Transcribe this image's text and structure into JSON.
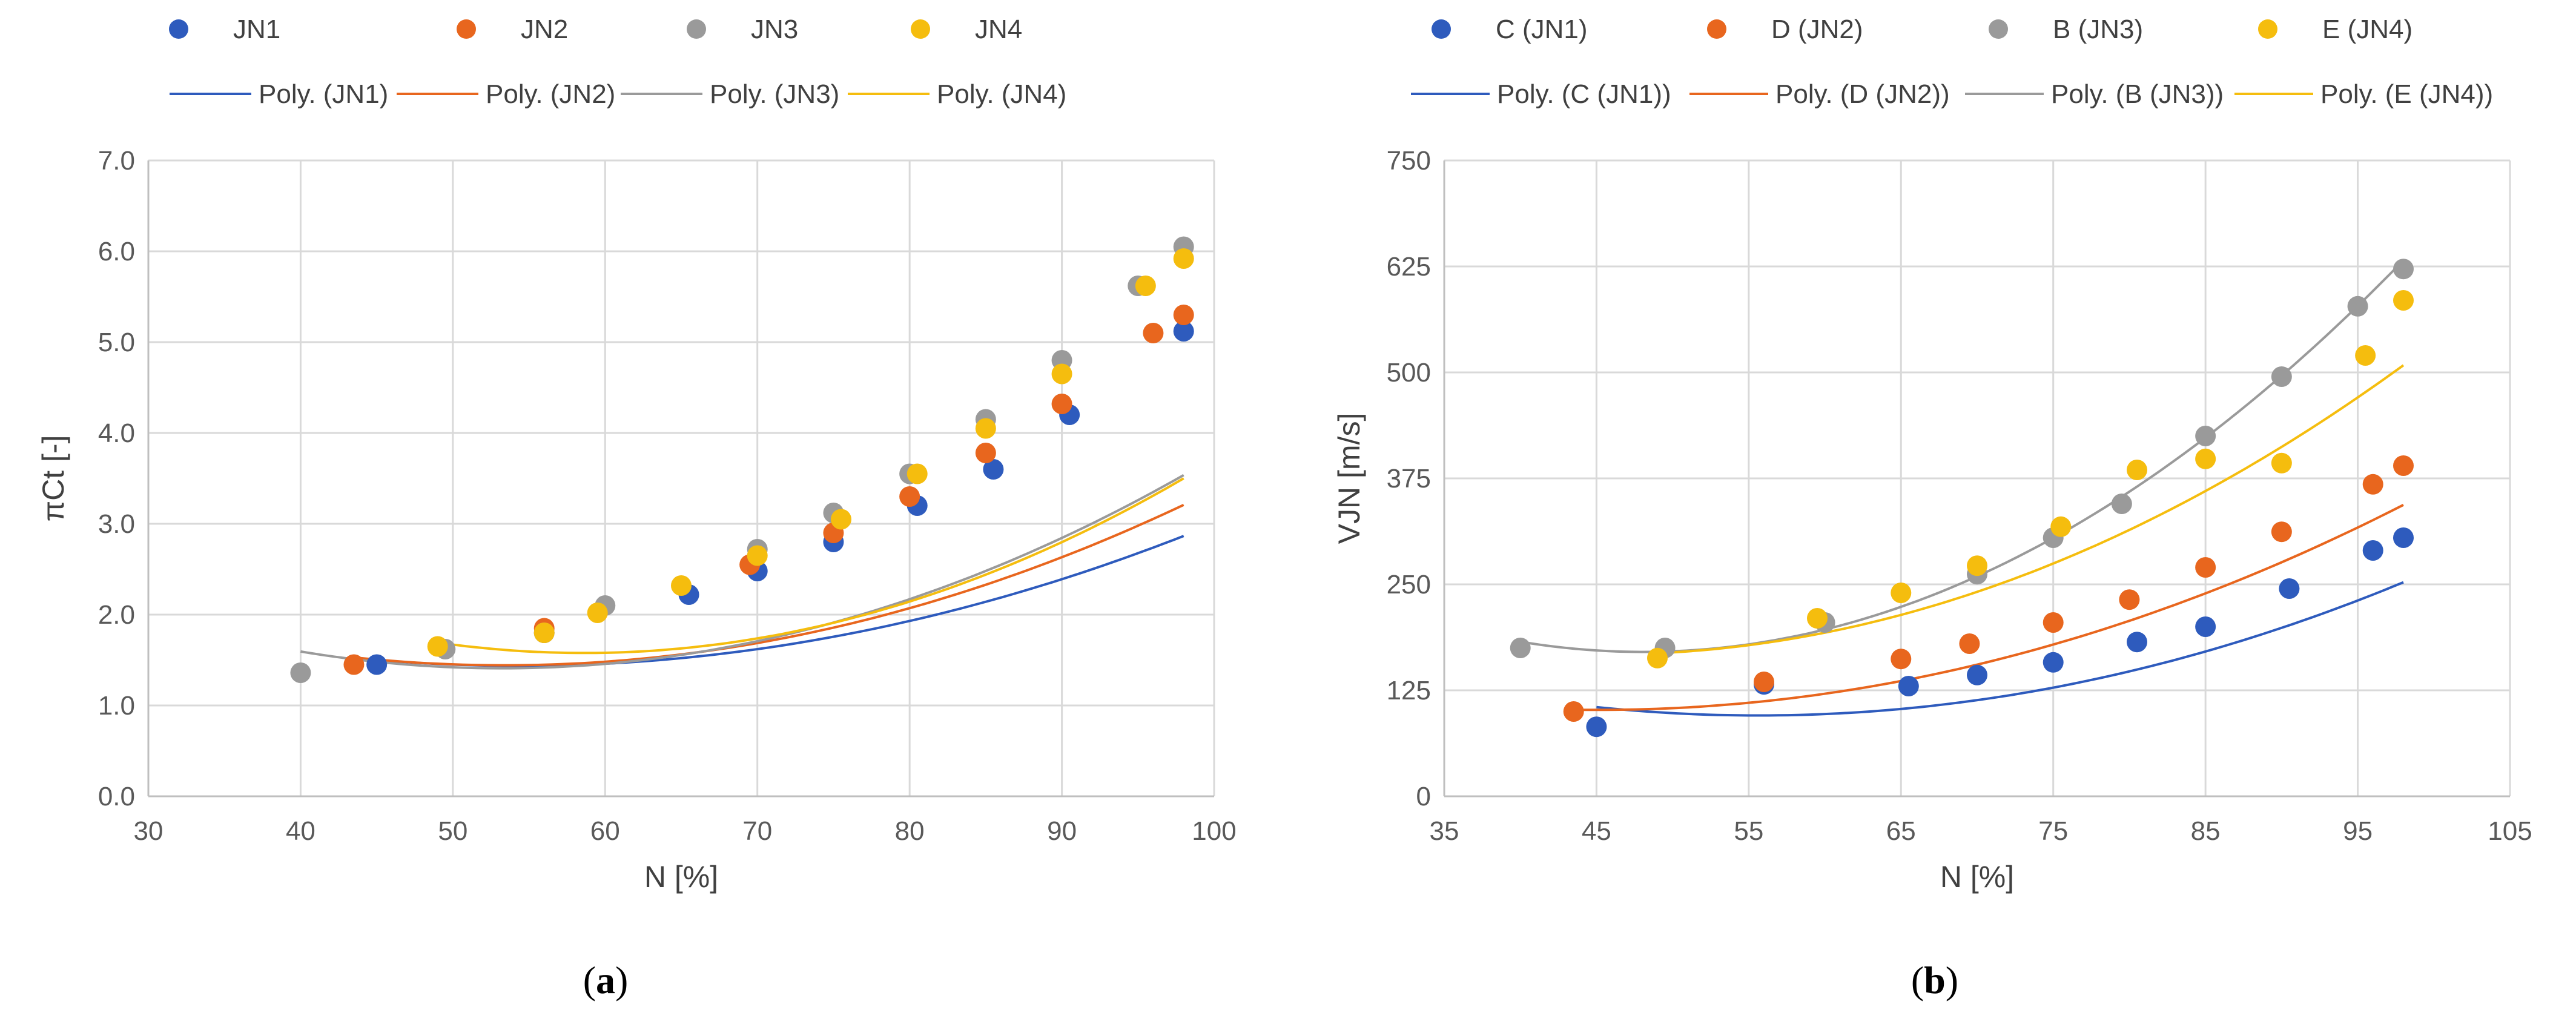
{
  "colors": {
    "JN1": "#2e5bbd",
    "JN2": "#e8661e",
    "JN3": "#9a9a9a",
    "JN4": "#f5bd0e"
  },
  "chart_data": [
    {
      "id": "a",
      "type": "scatter",
      "caption_pre": "(",
      "caption_letter": "a",
      "caption_post": ")",
      "xlabel": "N [%]",
      "ylabel": "πCt [-]",
      "xlim": [
        30,
        100
      ],
      "ylim": [
        0,
        7
      ],
      "xticks": [
        30,
        40,
        50,
        60,
        70,
        80,
        90,
        100
      ],
      "yticks": [
        "0.0",
        "1.0",
        "2.0",
        "3.0",
        "4.0",
        "5.0",
        "6.0",
        "7.0"
      ],
      "grid": true,
      "legend": "top",
      "series": [
        {
          "key": "JN1",
          "name": "JN1",
          "fit_name": "Poly. (JN1)",
          "x": [
            45,
            56,
            65.5,
            70,
            75,
            80.5,
            85.5,
            90.5,
            98
          ],
          "y": [
            1.45,
            1.8,
            2.22,
            2.48,
            2.8,
            3.2,
            3.6,
            4.2,
            5.12
          ],
          "fit": [
            0.00075,
            -0.0815,
            3.65
          ]
        },
        {
          "key": "JN2",
          "name": "JN2",
          "fit_name": "Poly. (JN2)",
          "x": [
            43.5,
            56,
            69.5,
            75,
            80,
            85,
            90,
            96,
            98
          ],
          "y": [
            1.45,
            1.85,
            2.55,
            2.9,
            3.3,
            3.78,
            4.32,
            5.1,
            5.3
          ],
          "fit": [
            0.000887,
            -0.0947,
            3.97
          ]
        },
        {
          "key": "JN3",
          "name": "JN3",
          "fit_name": "Poly. (JN3)",
          "x": [
            40,
            49.5,
            56,
            60,
            70,
            75,
            80,
            85,
            90,
            95,
            98
          ],
          "y": [
            1.36,
            1.62,
            1.8,
            2.1,
            2.72,
            3.12,
            3.55,
            4.15,
            4.8,
            5.62,
            6.05
          ],
          "fit": [
            0.00106,
            -0.1128,
            4.41
          ]
        },
        {
          "key": "JN4",
          "name": "JN4",
          "fit_name": "Poly. (JN4)",
          "x": [
            49,
            56,
            59.5,
            65,
            70,
            75.5,
            80.5,
            85,
            90,
            95.5,
            98
          ],
          "y": [
            1.65,
            1.8,
            2.02,
            2.32,
            2.65,
            3.05,
            3.55,
            4.05,
            4.65,
            5.62,
            5.92
          ],
          "fit": [
            0.00124,
            -0.1454,
            5.84
          ]
        }
      ]
    },
    {
      "id": "b",
      "type": "scatter",
      "caption_pre": "(",
      "caption_letter": "b",
      "caption_post": ")",
      "xlabel": "N [%]",
      "ylabel": "VJN [m/s]",
      "xlim": [
        35,
        105
      ],
      "ylim": [
        0,
        750
      ],
      "xticks": [
        35,
        45,
        55,
        65,
        75,
        85,
        95,
        105
      ],
      "yticks": [
        "0",
        "125",
        "250",
        "375",
        "500",
        "625",
        "750"
      ],
      "grid": true,
      "legend": "top",
      "series": [
        {
          "key": "JN1",
          "name": "C (JN1)",
          "fit_name": "Poly. (C (JN1))",
          "x": [
            45,
            56,
            65.5,
            70,
            75,
            80.5,
            85,
            90.5,
            96,
            98
          ],
          "y": [
            82,
            132,
            130,
            143,
            158,
            182,
            200,
            245,
            290,
            305
          ],
          "fit": [
            0.0875,
            -9.735,
            366.1
          ]
        },
        {
          "key": "JN2",
          "name": "D (JN2)",
          "fit_name": "Poly. (D (JN2))",
          "x": [
            43.5,
            56,
            65,
            69.5,
            75,
            80,
            85,
            90,
            96,
            98
          ],
          "y": [
            100,
            135,
            162,
            180,
            205,
            232,
            270,
            312,
            368,
            390
          ],
          "fit": [
            0.0867,
            -7.836,
            279.0
          ]
        },
        {
          "key": "JN3",
          "name": "B (JN3)",
          "fit_name": "Poly. (B (JN3))",
          "x": [
            40,
            49.5,
            60,
            70,
            75,
            79.5,
            85,
            90,
            95,
            98
          ],
          "y": [
            175,
            175,
            205,
            262,
            305,
            345,
            425,
            495,
            578,
            622
          ],
          "fit": [
            0.1852,
            -17.8,
            598
          ]
        },
        {
          "key": "JN4",
          "name": "E (JN4)",
          "fit_name": "Poly. (E (JN4))",
          "x": [
            49,
            59.5,
            65,
            70,
            75.5,
            80.5,
            85,
            90,
            95.5,
            98
          ],
          "y": [
            163,
            210,
            240,
            272,
            318,
            385,
            398,
            393,
            520,
            585
          ],
          "fit": [
            0.1245,
            -11.37,
            427
          ]
        }
      ]
    }
  ]
}
